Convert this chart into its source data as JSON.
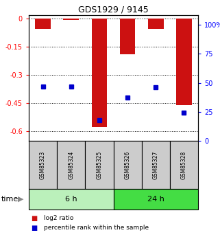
{
  "title": "GDS1929 / 9145",
  "samples": [
    "GSM85323",
    "GSM85324",
    "GSM85325",
    "GSM85326",
    "GSM85327",
    "GSM85328"
  ],
  "log2_ratio": [
    -0.055,
    -0.005,
    -0.575,
    -0.19,
    -0.055,
    -0.46
  ],
  "percentile_rank": [
    47,
    47,
    18,
    37,
    46,
    24
  ],
  "groups": [
    {
      "label": "6 h",
      "indices": [
        0,
        1,
        2
      ],
      "color": "#bbf0bb"
    },
    {
      "label": "24 h",
      "indices": [
        3,
        4,
        5
      ],
      "color": "#44dd44"
    }
  ],
  "bar_color": "#cc1111",
  "dot_color": "#0000cc",
  "ylim_left": [
    -0.65,
    0.02
  ],
  "ylim_right": [
    0,
    108.3
  ],
  "yticks_left": [
    0,
    -0.15,
    -0.3,
    -0.45,
    -0.6
  ],
  "yticks_right": [
    0,
    25,
    50,
    75,
    100
  ],
  "ytick_labels_left": [
    "0",
    "-0.15",
    "-0.3",
    "-0.45",
    "-0.6"
  ],
  "ytick_labels_right": [
    "0",
    "25",
    "50",
    "75",
    "100%"
  ],
  "bar_width": 0.55,
  "background_color": "#ffffff",
  "plot_bg": "#ffffff",
  "legend_items": [
    "log2 ratio",
    "percentile rank within the sample"
  ],
  "time_label": "time",
  "sample_box_color": "#cccccc",
  "title_fontsize": 9
}
